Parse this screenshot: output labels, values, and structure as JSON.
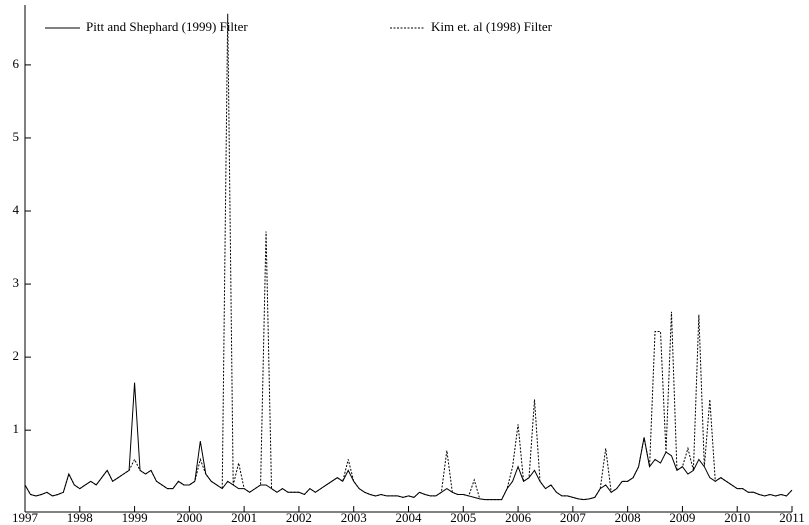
{
  "chart_data": {
    "type": "line",
    "legend": "top",
    "x": [
      1997,
      1997.1,
      1997.2,
      1997.3,
      1997.4,
      1997.5,
      1997.6,
      1997.7,
      1997.8,
      1997.9,
      1998,
      1998.1,
      1998.2,
      1998.3,
      1998.4,
      1998.5,
      1998.6,
      1998.7,
      1998.8,
      1998.9,
      1999,
      1999.1,
      1999.2,
      1999.3,
      1999.4,
      1999.5,
      1999.6,
      1999.7,
      1999.8,
      1999.9,
      2000,
      2000.1,
      2000.2,
      2000.3,
      2000.4,
      2000.5,
      2000.6,
      2000.7,
      2000.8,
      2000.9,
      2001,
      2001.1,
      2001.2,
      2001.3,
      2001.4,
      2001.5,
      2001.6,
      2001.7,
      2001.8,
      2001.9,
      2002,
      2002.1,
      2002.2,
      2002.3,
      2002.4,
      2002.5,
      2002.6,
      2002.7,
      2002.8,
      2002.9,
      2003,
      2003.1,
      2003.2,
      2003.3,
      2003.4,
      2003.5,
      2003.6,
      2003.7,
      2003.8,
      2003.9,
      2004,
      2004.1,
      2004.2,
      2004.3,
      2004.4,
      2004.5,
      2004.6,
      2004.7,
      2004.8,
      2004.9,
      2005,
      2005.1,
      2005.2,
      2005.3,
      2005.4,
      2005.5,
      2005.6,
      2005.7,
      2005.8,
      2005.9,
      2006,
      2006.1,
      2006.2,
      2006.3,
      2006.4,
      2006.5,
      2006.6,
      2006.7,
      2006.8,
      2006.9,
      2007,
      2007.1,
      2007.2,
      2007.3,
      2007.4,
      2007.5,
      2007.6,
      2007.7,
      2007.8,
      2007.9,
      2008,
      2008.1,
      2008.2,
      2008.3,
      2008.4,
      2008.5,
      2008.6,
      2008.7,
      2008.8,
      2008.9,
      2009,
      2009.1,
      2009.2,
      2009.3,
      2009.4,
      2009.5,
      2009.6,
      2009.7,
      2009.8,
      2009.9,
      2010,
      2010.1,
      2010.2,
      2010.3,
      2010.4,
      2010.5,
      2010.6,
      2010.7,
      2010.8,
      2010.9,
      2011
    ],
    "series": [
      {
        "name": "Kim et. al (1998) Filter",
        "color": "#000000",
        "style": "dotted",
        "values": [
          0.25,
          0.12,
          0.1,
          0.12,
          0.15,
          0.1,
          0.12,
          0.15,
          0.4,
          0.25,
          0.2,
          0.25,
          0.3,
          0.25,
          0.35,
          0.45,
          0.3,
          0.35,
          0.4,
          0.45,
          0.6,
          0.45,
          0.4,
          0.45,
          0.3,
          0.25,
          0.2,
          0.2,
          0.3,
          0.25,
          0.25,
          0.3,
          0.6,
          0.4,
          0.3,
          0.25,
          0.2,
          6.7,
          0.25,
          0.55,
          0.2,
          0.15,
          0.2,
          0.25,
          3.72,
          0.2,
          0.15,
          0.2,
          0.15,
          0.15,
          0.15,
          0.12,
          0.2,
          0.15,
          0.2,
          0.25,
          0.3,
          0.35,
          0.3,
          0.6,
          0.3,
          0.2,
          0.15,
          0.12,
          0.1,
          0.12,
          0.1,
          0.1,
          0.1,
          0.08,
          0.1,
          0.08,
          0.15,
          0.12,
          0.1,
          0.1,
          0.15,
          0.72,
          0.15,
          0.12,
          0.12,
          0.1,
          0.32,
          0.06,
          0.05,
          0.05,
          0.05,
          0.05,
          0.2,
          0.5,
          1.08,
          0.3,
          0.35,
          1.42,
          0.3,
          0.2,
          0.25,
          0.15,
          0.1,
          0.1,
          0.08,
          0.06,
          0.05,
          0.06,
          0.08,
          0.2,
          0.75,
          0.15,
          0.2,
          0.3,
          0.3,
          0.35,
          0.5,
          0.9,
          0.5,
          2.35,
          2.35,
          0.7,
          2.62,
          0.45,
          0.5,
          0.75,
          0.45,
          2.58,
          0.5,
          1.42,
          0.3,
          0.35,
          0.3,
          0.25,
          0.2,
          0.2,
          0.15,
          0.15,
          0.12,
          0.1,
          0.12,
          0.1,
          0.12,
          0.1,
          0.18
        ]
      },
      {
        "name": "Pitt and Shephard (1999) Filter",
        "color": "#000000",
        "style": "solid",
        "values": [
          0.25,
          0.12,
          0.1,
          0.12,
          0.15,
          0.1,
          0.12,
          0.15,
          0.4,
          0.25,
          0.2,
          0.25,
          0.3,
          0.25,
          0.35,
          0.45,
          0.3,
          0.35,
          0.4,
          0.45,
          1.65,
          0.45,
          0.4,
          0.45,
          0.3,
          0.25,
          0.2,
          0.2,
          0.3,
          0.25,
          0.25,
          0.3,
          0.85,
          0.4,
          0.3,
          0.25,
          0.2,
          0.3,
          0.25,
          0.2,
          0.2,
          0.15,
          0.2,
          0.25,
          0.25,
          0.2,
          0.15,
          0.2,
          0.15,
          0.15,
          0.15,
          0.12,
          0.2,
          0.15,
          0.2,
          0.25,
          0.3,
          0.35,
          0.3,
          0.45,
          0.3,
          0.2,
          0.15,
          0.12,
          0.1,
          0.12,
          0.1,
          0.1,
          0.1,
          0.08,
          0.1,
          0.08,
          0.15,
          0.12,
          0.1,
          0.1,
          0.15,
          0.2,
          0.15,
          0.12,
          0.12,
          0.1,
          0.08,
          0.06,
          0.05,
          0.05,
          0.05,
          0.05,
          0.2,
          0.3,
          0.5,
          0.3,
          0.35,
          0.45,
          0.3,
          0.2,
          0.25,
          0.15,
          0.1,
          0.1,
          0.08,
          0.06,
          0.05,
          0.06,
          0.08,
          0.2,
          0.25,
          0.15,
          0.2,
          0.3,
          0.3,
          0.35,
          0.5,
          0.9,
          0.5,
          0.6,
          0.55,
          0.7,
          0.65,
          0.45,
          0.5,
          0.4,
          0.45,
          0.6,
          0.5,
          0.35,
          0.3,
          0.35,
          0.3,
          0.25,
          0.2,
          0.2,
          0.15,
          0.15,
          0.12,
          0.1,
          0.12,
          0.1,
          0.12,
          0.1,
          0.18
        ]
      }
    ],
    "xlim": [
      1997,
      2011
    ],
    "xticks": [
      1997,
      1998,
      1999,
      2000,
      2001,
      2002,
      2003,
      2004,
      2005,
      2006,
      2007,
      2008,
      2009,
      2010,
      2011
    ],
    "ylim": [
      -0.12,
      6.82
    ],
    "yticks": [
      1,
      2,
      3,
      4,
      5,
      6
    ]
  }
}
